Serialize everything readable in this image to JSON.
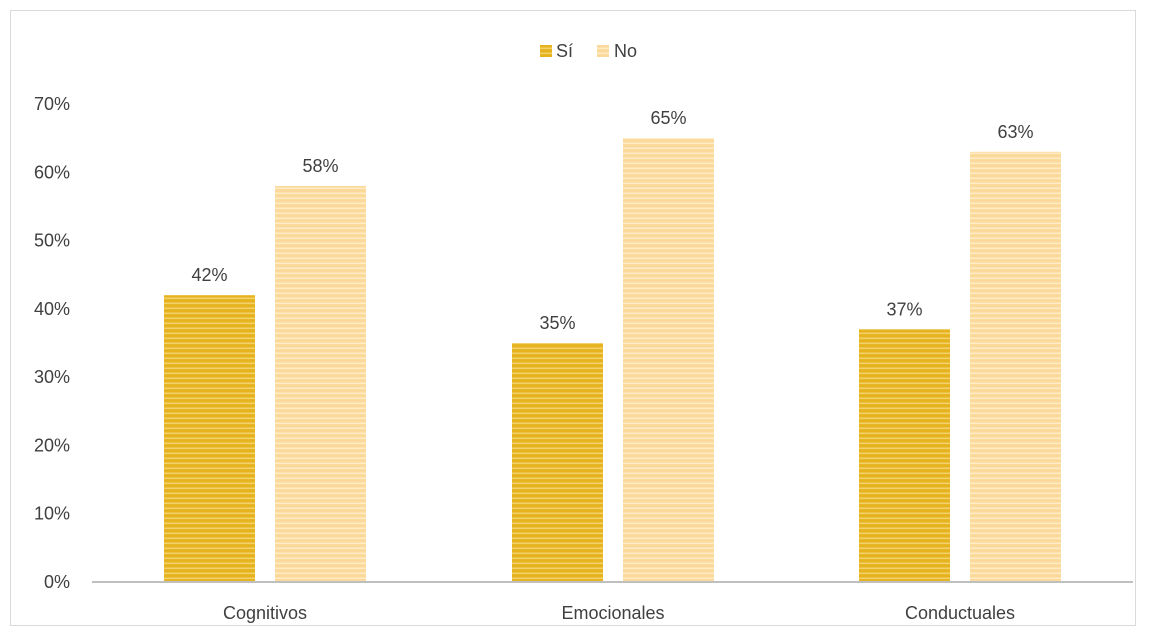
{
  "chart_data": {
    "type": "bar",
    "categories": [
      "Cognitivos",
      "Emocionales",
      "Conductuales"
    ],
    "series": [
      {
        "name": "Sí",
        "values": [
          42,
          35,
          37
        ],
        "labels": [
          "42%",
          "35%",
          "37%"
        ],
        "color": "#E6B31E",
        "stripe": "#F2D16B"
      },
      {
        "name": "No",
        "values": [
          58,
          65,
          63
        ],
        "labels": [
          "58%",
          "65%",
          "63%"
        ],
        "color": "#FBD99A",
        "stripe": "#FFEBC4"
      }
    ],
    "y_ticks": [
      "0%",
      "10%",
      "20%",
      "30%",
      "40%",
      "50%",
      "60%",
      "70%"
    ],
    "ylim": [
      0,
      70
    ],
    "grid": false,
    "legend": "top-center",
    "axis_color": "#bfbfbf",
    "text_color": "#404040"
  }
}
